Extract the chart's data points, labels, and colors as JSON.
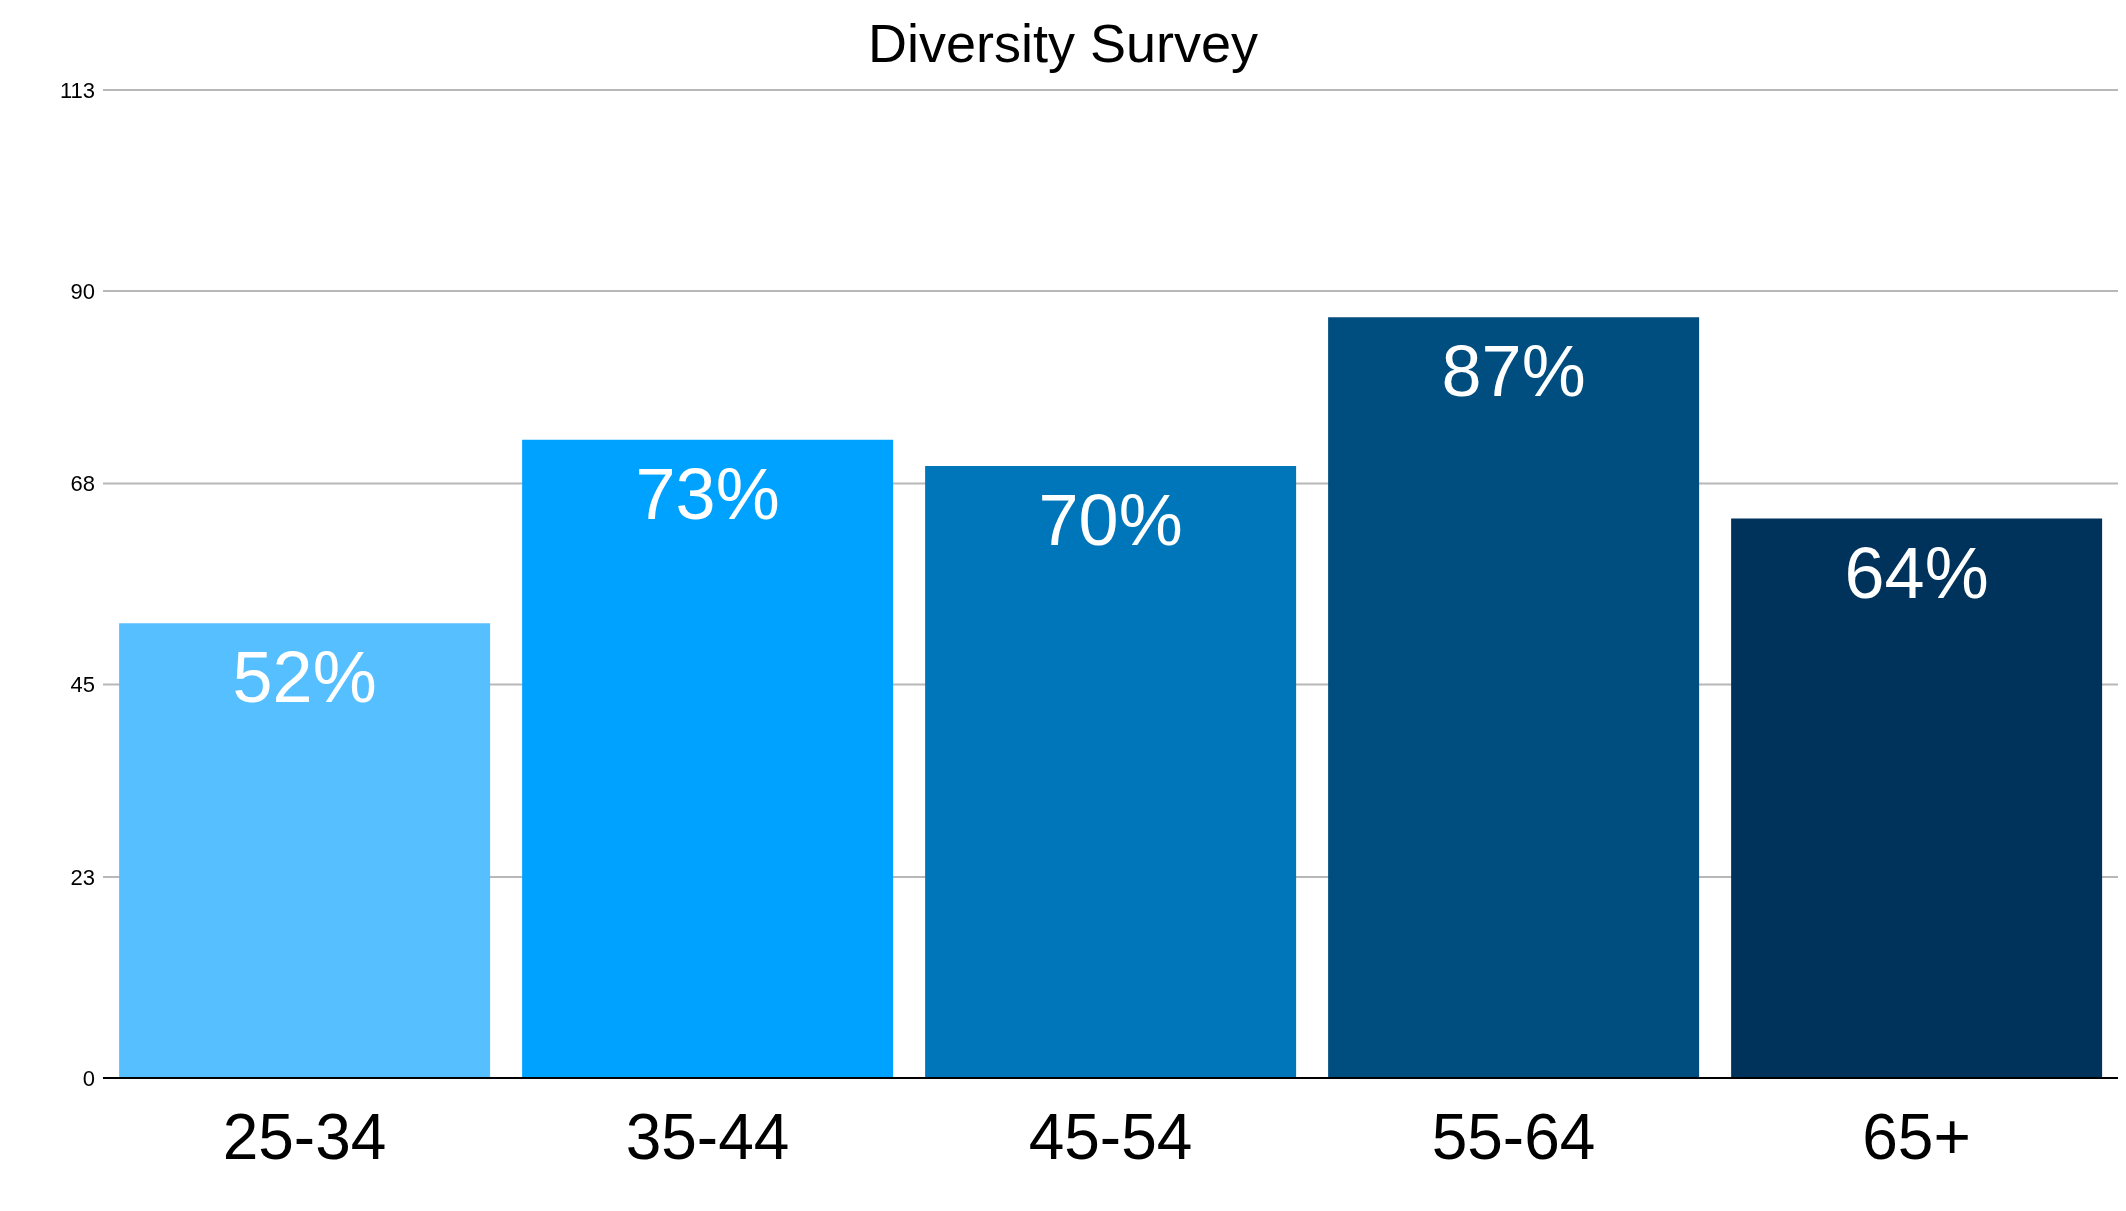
{
  "chart_data": {
    "type": "bar",
    "title": "Diversity Survey",
    "categories": [
      "25-34",
      "35-44",
      "45-54",
      "55-64",
      "65+"
    ],
    "values": [
      52,
      73,
      70,
      87,
      64
    ],
    "colors": [
      "#56bfff",
      "#00a2ff",
      "#0076ba",
      "#004d80",
      "#00335c"
    ],
    "value_labels": [
      "52%",
      "73%",
      "70%",
      "87%",
      "64%"
    ],
    "ylim": [
      0,
      113
    ],
    "yticks": [
      0,
      23,
      45,
      68,
      90,
      113
    ],
    "grid": "y"
  }
}
